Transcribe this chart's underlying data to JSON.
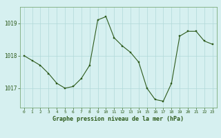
{
  "x": [
    0,
    1,
    2,
    3,
    4,
    5,
    6,
    7,
    8,
    9,
    10,
    11,
    12,
    13,
    14,
    15,
    16,
    17,
    18,
    19,
    20,
    21,
    22,
    23
  ],
  "y": [
    1018.0,
    1017.85,
    1017.7,
    1017.45,
    1017.15,
    1017.0,
    1017.05,
    1017.3,
    1017.7,
    1019.1,
    1019.2,
    1018.55,
    1018.3,
    1018.1,
    1017.8,
    1017.0,
    1016.65,
    1016.6,
    1017.15,
    1018.6,
    1018.75,
    1018.75,
    1018.45,
    1018.35
  ],
  "line_color": "#2d5a1b",
  "marker_color": "#2d5a1b",
  "bg_color": "#d6f0f0",
  "grid_color": "#b0d8d8",
  "xlabel": "Graphe pression niveau de la mer (hPa)",
  "xlabel_color": "#2d5a1b",
  "tick_color": "#2d5a1b",
  "ylim": [
    1016.4,
    1019.5
  ],
  "yticks": [
    1017,
    1018,
    1019
  ],
  "xlim": [
    -0.5,
    23.5
  ],
  "xticks": [
    0,
    1,
    2,
    3,
    4,
    5,
    6,
    7,
    8,
    9,
    10,
    11,
    12,
    13,
    14,
    15,
    16,
    17,
    18,
    19,
    20,
    21,
    22,
    23
  ]
}
